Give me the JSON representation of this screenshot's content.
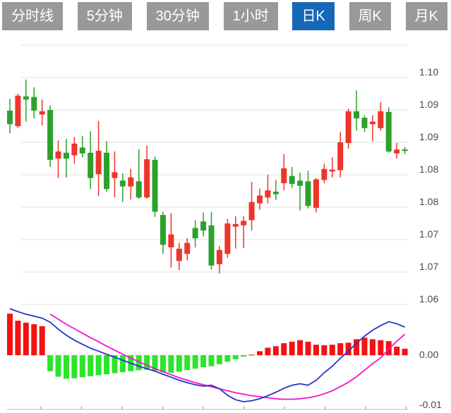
{
  "toolbar": {
    "tabs": [
      {
        "label": "分时线",
        "active": false
      },
      {
        "label": "5分钟",
        "active": false
      },
      {
        "label": "30分钟",
        "active": false
      },
      {
        "label": "1小时",
        "active": false
      },
      {
        "label": "日K",
        "active": true
      },
      {
        "label": "周K",
        "active": false
      },
      {
        "label": "月K",
        "active": false
      }
    ],
    "active_tab_color": "#1667b6",
    "inactive_tab_color": "#999999",
    "tab_text_color": "#ffffff"
  },
  "colors": {
    "candle_up": "#ee352b",
    "candle_down": "#2ca12c",
    "hist_up": "#f31212",
    "hist_down": "#2ce42c",
    "dif_line": "#2633c4",
    "dea_line": "#f513cb",
    "gridline": "#e7e7e7",
    "axis_line": "#cccccc",
    "axis_tick": "#9aa0b8",
    "label_text": "#4a4a4a"
  },
  "chart_data": {
    "type": "candlestick",
    "title": "",
    "timeframe_selected": "日K",
    "legend_position": "none",
    "grid": true,
    "price_axis": {
      "side": "right",
      "labels": [
        "1.10",
        "1.09",
        "1.09",
        "1.08",
        "1.08",
        "1.07",
        "1.07",
        "1.06"
      ],
      "label_values": [
        1.1,
        1.095,
        1.09,
        1.085,
        1.08,
        1.075,
        1.07,
        1.065
      ],
      "gridline_values": [
        1.105,
        1.1,
        1.095,
        1.09,
        1.085,
        1.08,
        1.075,
        1.07,
        1.065
      ],
      "min": 1.064,
      "max": 1.105
    },
    "indicator_axis": {
      "side": "right",
      "labels": [
        "0.00",
        "-0.01"
      ],
      "label_values": [
        0.0,
        -0.01
      ]
    },
    "x_axis": {
      "labels": [],
      "tick_count": 10
    },
    "candles": [
      [
        1.0949,
        1.0967,
        1.0914,
        1.0928
      ],
      [
        1.0925,
        1.0975,
        1.0922,
        1.0972
      ],
      [
        1.0971,
        1.0997,
        1.0932,
        1.0966
      ],
      [
        1.097,
        1.0985,
        1.0937,
        1.0949
      ],
      [
        1.0943,
        1.0966,
        1.0926,
        1.0948
      ],
      [
        1.095,
        1.0957,
        1.0862,
        1.0873
      ],
      [
        1.0875,
        1.0903,
        1.0845,
        1.0886
      ],
      [
        1.0884,
        1.0905,
        1.0846,
        1.0875
      ],
      [
        1.088,
        1.0908,
        1.0867,
        1.0898
      ],
      [
        1.0892,
        1.091,
        1.0877,
        1.0883
      ],
      [
        1.0884,
        1.0917,
        1.0828,
        1.0845
      ],
      [
        1.0851,
        1.0933,
        1.0817,
        1.0887
      ],
      [
        1.0884,
        1.0902,
        1.0824,
        1.0828
      ],
      [
        1.0845,
        1.0886,
        1.0815,
        1.0854
      ],
      [
        1.0841,
        1.0852,
        1.0808,
        1.0832
      ],
      [
        1.0832,
        1.0859,
        1.0812,
        1.0846
      ],
      [
        1.084,
        1.0889,
        1.0813,
        1.0815
      ],
      [
        1.0815,
        1.0895,
        1.0813,
        1.0874
      ],
      [
        1.0873,
        1.0878,
        1.0785,
        1.0793
      ],
      [
        1.0788,
        1.0793,
        1.0728,
        1.0742
      ],
      [
        1.0738,
        1.0791,
        1.0707,
        1.0758
      ],
      [
        1.0717,
        1.0745,
        1.0703,
        1.0736
      ],
      [
        1.0728,
        1.0752,
        1.0718,
        1.0745
      ],
      [
        1.0768,
        1.078,
        1.0738,
        1.0752
      ],
      [
        1.0778,
        1.0792,
        1.0755,
        1.0764
      ],
      [
        1.0772,
        1.0793,
        1.0704,
        1.071
      ],
      [
        1.0712,
        1.074,
        1.0698,
        1.0734
      ],
      [
        1.0728,
        1.0782,
        1.0722,
        1.0775
      ],
      [
        1.077,
        1.0786,
        1.0736,
        1.0774
      ],
      [
        1.0772,
        1.0786,
        1.0737,
        1.0779
      ],
      [
        1.078,
        1.0839,
        1.0764,
        1.0808
      ],
      [
        1.0806,
        1.0829,
        1.0796,
        1.0818
      ],
      [
        1.0815,
        1.085,
        1.0806,
        1.0826
      ],
      [
        1.0824,
        1.0842,
        1.0811,
        1.082
      ],
      [
        1.0837,
        1.0882,
        1.0826,
        1.086
      ],
      [
        1.0848,
        1.0862,
        1.083,
        1.0836
      ],
      [
        1.0841,
        1.0853,
        1.0795,
        1.0833
      ],
      [
        1.084,
        1.0856,
        1.0798,
        1.0802
      ],
      [
        1.0799,
        1.0845,
        1.0792,
        1.0843
      ],
      [
        1.0842,
        1.0867,
        1.0837,
        1.0859
      ],
      [
        1.0855,
        1.0877,
        1.0846,
        1.0858
      ],
      [
        1.0857,
        1.0916,
        1.0846,
        1.09
      ],
      [
        1.0899,
        1.0952,
        1.089,
        1.0948
      ],
      [
        1.0948,
        1.098,
        1.0918,
        1.0937
      ],
      [
        1.0938,
        1.0942,
        1.0916,
        1.0922
      ],
      [
        1.0928,
        1.0942,
        1.0902,
        1.0932
      ],
      [
        1.0922,
        1.0962,
        1.0918,
        1.0948
      ],
      [
        1.0947,
        1.0954,
        1.0884,
        1.0886
      ],
      [
        1.0883,
        1.0899,
        1.0875,
        1.0889
      ],
      [
        1.0889,
        1.0893,
        1.0882,
        1.0887
      ]
    ],
    "macd": {
      "histogram": [
        0.0083,
        0.0069,
        0.0065,
        0.0062,
        0.0058,
        -0.0032,
        -0.0043,
        -0.0047,
        -0.0046,
        -0.0044,
        -0.0042,
        -0.004,
        -0.0038,
        -0.0036,
        -0.0034,
        -0.0032,
        -0.003,
        -0.0029,
        -0.0031,
        -0.0034,
        -0.0035,
        -0.0033,
        -0.003,
        -0.0027,
        -0.0024,
        -0.0022,
        -0.0018,
        -0.0013,
        -0.0008,
        -0.0003,
        0.0001,
        0.0008,
        0.0015,
        0.0018,
        0.0024,
        0.0027,
        0.003,
        0.0027,
        0.0021,
        0.002,
        0.0021,
        0.0024,
        0.0025,
        0.0032,
        0.0035,
        0.0032,
        0.003,
        0.0028,
        0.0017,
        0.0013
      ],
      "dif": [
        0.0093,
        0.0087,
        0.0082,
        0.0078,
        0.0074,
        0.0066,
        0.0052,
        0.004,
        0.003,
        0.0022,
        0.0014,
        0.0008,
        0.0002,
        -0.0004,
        -0.001,
        -0.0016,
        -0.0022,
        -0.0027,
        -0.0032,
        -0.0038,
        -0.0044,
        -0.005,
        -0.0055,
        -0.0059,
        -0.0062,
        -0.006,
        -0.0067,
        -0.008,
        -0.0089,
        -0.0093,
        -0.0091,
        -0.0087,
        -0.0081,
        -0.0074,
        -0.0066,
        -0.006,
        -0.0057,
        -0.006,
        -0.005,
        -0.0035,
        -0.0022,
        -0.0006,
        0.0008,
        0.0024,
        0.0038,
        0.005,
        0.0059,
        0.0067,
        0.0063,
        0.0056
      ],
      "dea": [
        null,
        null,
        null,
        null,
        null,
        0.0082,
        0.0072,
        0.0062,
        0.0053,
        0.0044,
        0.0035,
        0.0027,
        0.0018,
        0.001,
        0.0002,
        -0.0006,
        -0.0013,
        -0.002,
        -0.0027,
        -0.0033,
        -0.0039,
        -0.0045,
        -0.005,
        -0.0055,
        -0.0059,
        -0.0063,
        -0.0067,
        -0.0071,
        -0.0075,
        -0.0078,
        -0.0081,
        -0.0083,
        -0.0085,
        -0.0087,
        -0.0088,
        -0.0088,
        -0.0087,
        -0.0085,
        -0.0082,
        -0.0077,
        -0.0071,
        -0.0063,
        -0.0054,
        -0.0043,
        -0.003,
        -0.0017,
        -0.0005,
        0.0012,
        0.0028,
        0.0042
      ]
    }
  }
}
